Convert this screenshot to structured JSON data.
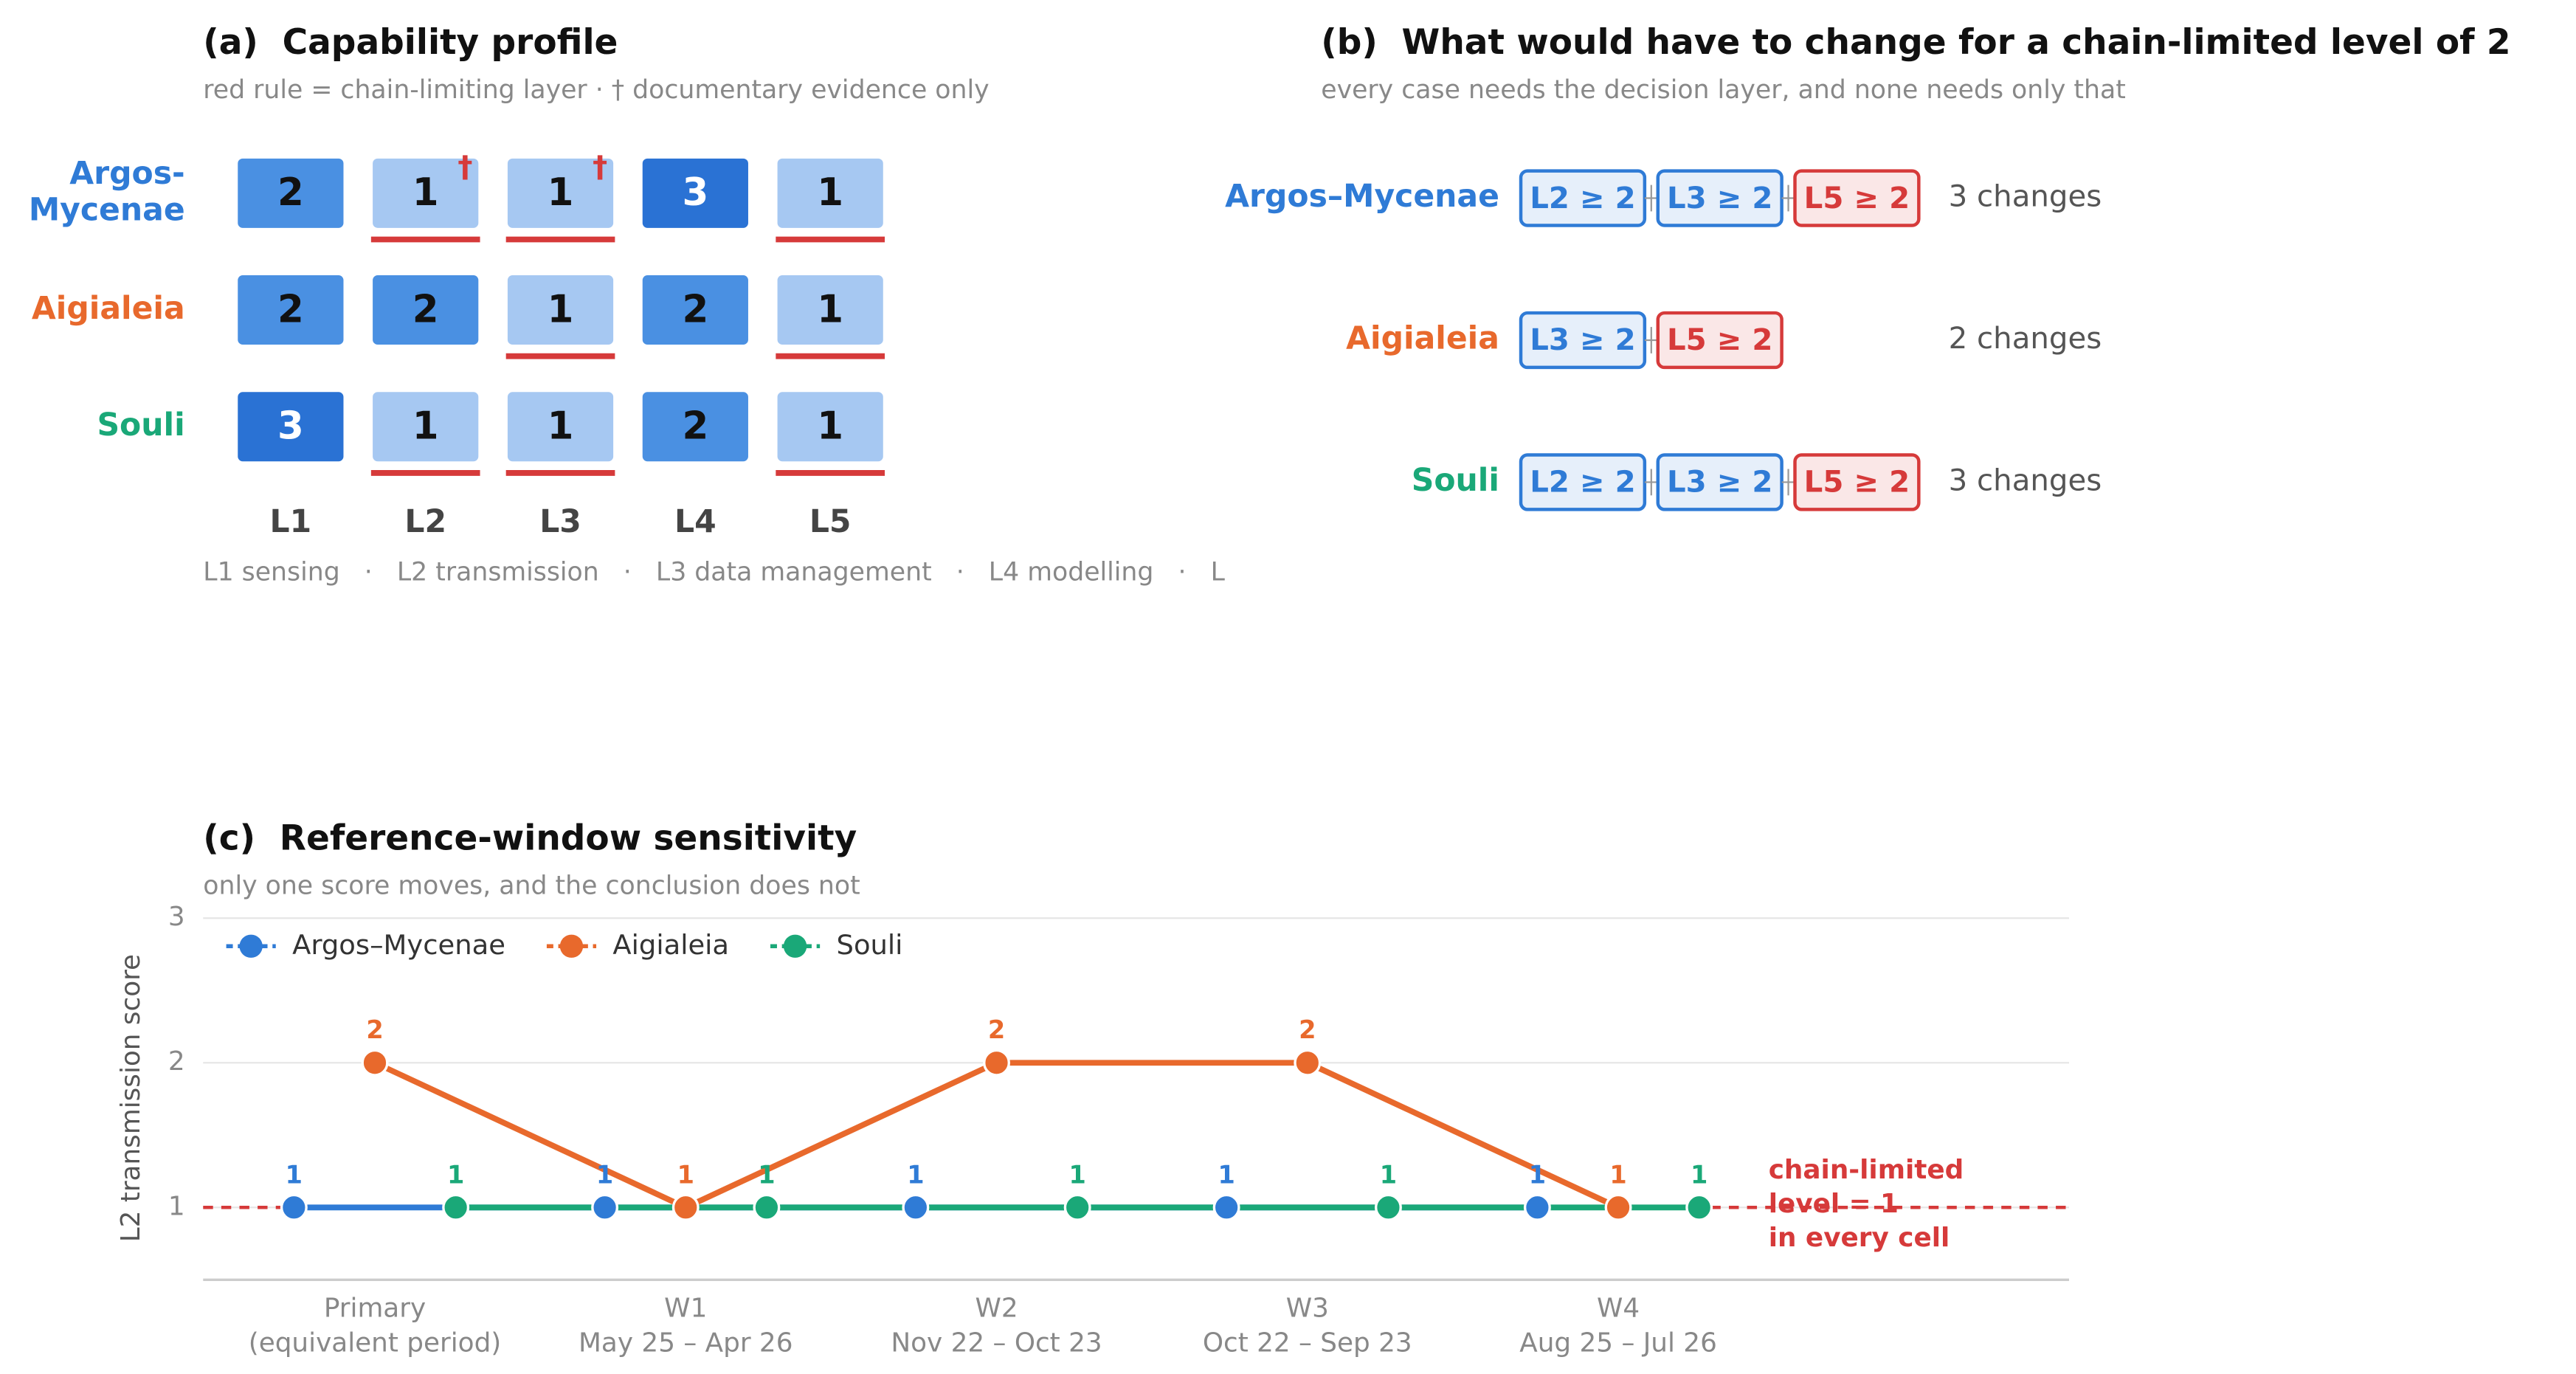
{
  "chart_data": [
    {
      "type": "heatmap",
      "title": "(a)  Capability profile",
      "subtitle": "red rule = chain-limiting layer · † documentary evidence only",
      "rows": [
        [
          "Argos-",
          "Mycenae"
        ],
        [
          "Aigialeia"
        ],
        [
          "Souli"
        ]
      ],
      "row_colors": [
        "#2f7bd6",
        "#e8692c",
        "#1aa878"
      ],
      "columns": [
        "L1",
        "L2",
        "L3",
        "L4",
        "L5"
      ],
      "values": [
        [
          2,
          1,
          1,
          3,
          1
        ],
        [
          2,
          2,
          1,
          2,
          1
        ],
        [
          3,
          1,
          1,
          2,
          1
        ]
      ],
      "markers": [
        [
          null,
          "†",
          "†",
          null,
          null
        ],
        [
          null,
          null,
          null,
          null,
          null
        ],
        [
          null,
          null,
          null,
          null,
          null
        ]
      ],
      "colorscale": [
        "#a6c8f2",
        "#4a90e2",
        "#2a72d4"
      ],
      "rule_color": "#d63a3a",
      "footnote": "L1 sensing   ·   L2 transmission   ·   L3 data management   ·   L4 modelling   ·   L"
    },
    {
      "type": "requirements",
      "title": "(b)  What would have to change for a chain-limited level of 2",
      "subtitle": "every case needs the decision layer, and none needs only that",
      "rows": [
        {
          "name": "Argos–Mycenae",
          "color": "#2f7bd6",
          "boxes": [
            {
              "text": "L2 ≥ 2",
              "color": "#2f7bd6"
            },
            {
              "text": "L3 ≥ 2",
              "color": "#2f7bd6"
            },
            {
              "text": "L5 ≥ 2",
              "color": "#d63a3a"
            }
          ],
          "label": "3 changes"
        },
        {
          "name": "Aigialeia",
          "color": "#e8692c",
          "boxes": [
            {
              "text": "L3 ≥ 2",
              "color": "#2f7bd6"
            },
            {
              "text": "L5 ≥ 2",
              "color": "#d63a3a"
            }
          ],
          "label": "2 changes"
        },
        {
          "name": "Souli",
          "color": "#1aa878",
          "boxes": [
            {
              "text": "L2 ≥ 2",
              "color": "#2f7bd6"
            },
            {
              "text": "L3 ≥ 2",
              "color": "#2f7bd6"
            },
            {
              "text": "L5 ≥ 2",
              "color": "#d63a3a"
            }
          ],
          "label": "3 changes"
        }
      ]
    },
    {
      "type": "line",
      "title": "(c)  Reference-window sensitivity",
      "subtitle": "only one score moves, and the conclusion does not",
      "categories": [
        [
          "Primary",
          "(equivalent period)"
        ],
        [
          "W1",
          "May 25 – Apr 26"
        ],
        [
          "W2",
          "Nov 22 – Oct 23"
        ],
        [
          "W3",
          "Oct 22 – Sep 23"
        ],
        [
          "W4",
          "Aug 25 – Jul 26"
        ]
      ],
      "ylabel": "L2 transmission score",
      "ylim": [
        0.5,
        3
      ],
      "yticks": [
        1,
        2,
        3
      ],
      "grid": true,
      "legend": "upper left",
      "series": [
        {
          "name": "Argos–Mycenae",
          "color": "#2f7bd6",
          "values": [
            1,
            1,
            1,
            1,
            1
          ]
        },
        {
          "name": "Aigialeia",
          "color": "#e8692c",
          "values": [
            2,
            1,
            2,
            2,
            1
          ]
        },
        {
          "name": "Souli",
          "color": "#1aa878",
          "values": [
            1,
            1,
            1,
            1,
            1
          ]
        }
      ],
      "reference_line": {
        "value": 1,
        "color": "#d63a3a",
        "label": [
          "chain-limited",
          "level = 1",
          "in every cell"
        ]
      }
    }
  ]
}
